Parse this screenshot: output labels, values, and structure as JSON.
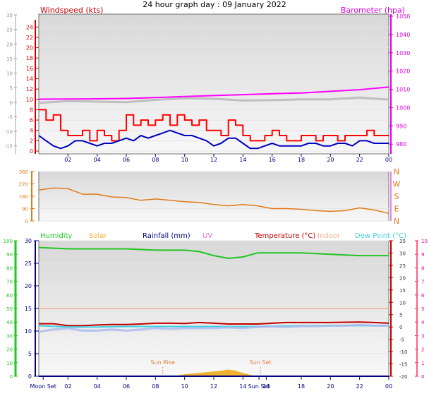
{
  "title": "24 hour graph day : 09 January 2022",
  "colors": {
    "wind_avg": "#0000c0",
    "wind_gust": "#ff0000",
    "barometer": "#ff00ff",
    "indoor_gray": "#bfbfbf",
    "direction": "#e07a1a",
    "humidity": "#22c522",
    "solar": "#f0b030",
    "rainfall": "#000080",
    "uv": "#e070e0",
    "temperature": "#c00000",
    "indoor": "#f4b090",
    "dewpoint": "#40d0e0",
    "dewpoint_light": "#a8b8f0",
    "sun_marker": "#e08040"
  },
  "chart_data": [
    {
      "type": "line",
      "panel": "wind-barometer",
      "x_labels": [
        "02",
        "04",
        "06",
        "08",
        "10",
        "12",
        "14",
        "16",
        "18",
        "20",
        "22",
        "00"
      ],
      "xlim": [
        0,
        24
      ],
      "left_axis": {
        "title": "Windspeed (kts)",
        "ticks": [
          "0",
          "2",
          "4",
          "6",
          "8",
          "10",
          "12",
          "14",
          "16",
          "18",
          "20",
          "22",
          "24"
        ],
        "ylim": [
          0,
          25
        ]
      },
      "outer_left_axis": {
        "ticks": [
          "-15",
          "-10",
          "-5",
          "0",
          "5",
          "10",
          "15",
          "20",
          "25",
          "30"
        ],
        "ylim": [
          -17,
          30
        ]
      },
      "right_axis": {
        "title": "Barometer (hpa)",
        "ticks": [
          "980",
          "990",
          "1000",
          "1010",
          "1020",
          "1030",
          "1040",
          "1050"
        ],
        "ylim": [
          977,
          1050
        ]
      },
      "series": [
        {
          "key": "barometer",
          "axis": "right",
          "x": [
            0,
            2,
            4,
            6,
            8,
            10,
            12,
            14,
            16,
            18,
            20,
            22,
            24
          ],
          "y": [
            1004.6,
            1004.7,
            1004.8,
            1005.0,
            1005.5,
            1006.1,
            1006.6,
            1007.1,
            1007.6,
            1008.0,
            1008.9,
            1009.8,
            1011.3
          ]
        },
        {
          "key": "indoor_gray",
          "axis": "outer_left",
          "x": [
            0,
            2,
            4,
            6,
            8,
            10,
            12,
            14,
            16,
            18,
            20,
            22,
            24
          ],
          "y": [
            -0.2,
            0.4,
            0.2,
            0,
            0.8,
            1.4,
            1.2,
            0.6,
            0.7,
            1.0,
            1.0,
            1.6,
            0.9
          ]
        },
        {
          "key": "wind_gust",
          "axis": "left",
          "x": [
            0,
            0.5,
            1,
            1.5,
            2,
            2.5,
            3,
            3.5,
            4,
            4.5,
            5,
            5.5,
            6,
            6.5,
            7,
            7.5,
            8,
            8.5,
            9,
            9.5,
            10,
            10.5,
            11,
            11.5,
            12,
            12.5,
            13,
            13.5,
            14,
            14.5,
            15,
            15.5,
            16,
            16.5,
            17,
            17.5,
            18,
            18.5,
            19,
            19.5,
            20,
            20.5,
            21,
            21.5,
            22,
            22.5,
            23,
            23.5,
            24
          ],
          "y": [
            8,
            6,
            7,
            4,
            3,
            3,
            4,
            2,
            4,
            3,
            2,
            4,
            7,
            5,
            6,
            5,
            6,
            7,
            5,
            7,
            6,
            5,
            6,
            4,
            4,
            3,
            6,
            5,
            3,
            2,
            2,
            3,
            4,
            3,
            2,
            2,
            3,
            3,
            2,
            3,
            3,
            2,
            3,
            3,
            3,
            4,
            3,
            3,
            3
          ]
        },
        {
          "key": "wind_avg",
          "axis": "left",
          "x": [
            0,
            0.5,
            1,
            1.5,
            2,
            2.5,
            3,
            3.5,
            4,
            4.5,
            5,
            5.5,
            6,
            6.5,
            7,
            7.5,
            8,
            8.5,
            9,
            9.5,
            10,
            10.5,
            11,
            11.5,
            12,
            12.5,
            13,
            13.5,
            14,
            14.5,
            15,
            15.5,
            16,
            16.5,
            17,
            17.5,
            18,
            18.5,
            19,
            19.5,
            20,
            20.5,
            21,
            21.5,
            22,
            22.5,
            23,
            23.5,
            24
          ],
          "y": [
            3,
            2,
            1,
            0.5,
            1,
            2,
            2,
            1.5,
            1,
            1.5,
            1.5,
            2,
            2.5,
            2,
            3,
            2.5,
            3,
            3.5,
            4,
            3.5,
            3,
            3,
            2.5,
            2,
            1,
            1.5,
            2.5,
            2.5,
            1.5,
            0.5,
            0.5,
            1,
            1.5,
            1,
            1,
            1,
            1,
            1.5,
            1.5,
            1,
            1,
            1.5,
            1.5,
            1,
            2,
            2,
            1.5,
            1.5,
            1.5
          ]
        }
      ]
    },
    {
      "type": "line",
      "panel": "wind-direction",
      "x_labels": [
        "02",
        "04",
        "06",
        "08",
        "10",
        "12",
        "14",
        "16",
        "18",
        "20",
        "22",
        "00"
      ],
      "xlim": [
        0,
        24
      ],
      "left_axis": {
        "ticks": [
          "0",
          "90",
          "180",
          "270",
          "360"
        ],
        "ylim": [
          0,
          360
        ]
      },
      "right_axis": {
        "ticks": [
          "N",
          "E",
          "S",
          "W",
          "N"
        ]
      },
      "series": [
        {
          "key": "direction",
          "x": [
            0,
            1,
            2,
            3,
            4,
            5,
            6,
            7,
            8,
            9,
            10,
            11,
            12,
            13,
            14,
            15,
            16,
            17,
            18,
            19,
            20,
            21,
            22,
            23,
            24
          ],
          "y": [
            225,
            240,
            235,
            195,
            195,
            175,
            170,
            150,
            160,
            150,
            140,
            135,
            120,
            110,
            120,
            110,
            90,
            90,
            85,
            75,
            70,
            75,
            95,
            80,
            55
          ]
        }
      ]
    },
    {
      "type": "line",
      "panel": "temperature-humidity",
      "x_labels": [
        "Moon Set",
        "02",
        "04",
        "06",
        "08",
        "10",
        "12",
        "14",
        "Sun Set",
        "16",
        "18",
        "20",
        "22",
        "00"
      ],
      "xlim": [
        0,
        24
      ],
      "legend": [
        "Humidity",
        "Solar",
        "Rainfall (mm)",
        "UV",
        "Temperature (°C)",
        "Indoor",
        "Dew Point (°C)"
      ],
      "left_axis": {
        "ticks": [
          "0",
          "10",
          "20",
          "30",
          "40",
          "50",
          "60",
          "70",
          "80",
          "90",
          "100"
        ],
        "ylim": [
          0,
          100
        ]
      },
      "inner_left_axis": {
        "ticks": [
          "0",
          "5",
          "10",
          "15",
          "20",
          "25",
          "30"
        ],
        "ylim": [
          0,
          30
        ]
      },
      "right_axis": {
        "ticks": [
          "-20",
          "-15",
          "-10",
          "-5",
          "0",
          "5",
          "10",
          "15",
          "20",
          "25",
          "30",
          "35"
        ],
        "ylim": [
          -20,
          35
        ]
      },
      "outer_right_axis": {
        "ticks": [
          "0",
          "1",
          "2",
          "3",
          "4",
          "5",
          "6",
          "7",
          "8",
          "9",
          "10"
        ],
        "ylim": [
          0,
          10
        ]
      },
      "annotations": [
        "Sun Rise",
        "Sun Set"
      ],
      "series": [
        {
          "key": "humidity",
          "axis": "left",
          "x": [
            0,
            2,
            4,
            6,
            8,
            10,
            11,
            12,
            13,
            14,
            15,
            16,
            18,
            20,
            22,
            24
          ],
          "y": [
            95,
            94,
            94,
            94,
            93,
            93,
            92,
            89,
            87,
            88,
            91,
            91,
            91,
            90,
            89,
            89
          ]
        },
        {
          "key": "indoor",
          "axis": "right",
          "x": [
            0,
            24
          ],
          "y": [
            7.5,
            7.5
          ]
        },
        {
          "key": "temperature",
          "axis": "right",
          "x": [
            0,
            1,
            2,
            3,
            4,
            5,
            6,
            7,
            8,
            9,
            10,
            11,
            12,
            13,
            14,
            15,
            16,
            17,
            18,
            19,
            20,
            21,
            22,
            23,
            24
          ],
          "y": [
            1.3,
            1.3,
            0.5,
            0.5,
            0.8,
            1,
            1,
            1.2,
            1.5,
            1.5,
            1.4,
            1.8,
            1.5,
            1.2,
            1.2,
            1.2,
            1.5,
            1.8,
            1.8,
            1.8,
            1.8,
            1.9,
            2,
            1.8,
            1.5
          ]
        },
        {
          "key": "dewpoint",
          "axis": "right",
          "x": [
            0,
            2,
            4,
            6,
            8,
            10,
            12,
            14,
            16,
            18,
            20,
            22,
            24
          ],
          "y": [
            0.5,
            0,
            0,
            0.2,
            0.2,
            0.2,
            0.2,
            0.1,
            0.3,
            0.5,
            0.5,
            0.5,
            0.5
          ]
        },
        {
          "key": "dewpoint_light",
          "axis": "right",
          "x": [
            0,
            1,
            2,
            3,
            4,
            5,
            6,
            7,
            8,
            9,
            10,
            11,
            12,
            13,
            14,
            15,
            16,
            17,
            18,
            19,
            20,
            21,
            22,
            23,
            24
          ],
          "y": [
            -2,
            -1,
            -0.5,
            -1.5,
            -1.5,
            -1,
            -1.5,
            -1,
            -0.5,
            -0.8,
            -0.5,
            -0.5,
            -0.5,
            -0.2,
            -0.5,
            0,
            0.2,
            0,
            0.3,
            0.3,
            0.5,
            0.5,
            0.8,
            0.5,
            0.5
          ]
        },
        {
          "key": "solar",
          "axis": "left",
          "x": [
            9.5,
            10,
            10.5,
            11,
            11.5,
            12,
            12.5,
            13,
            13.5,
            14,
            14.5,
            15
          ],
          "y": [
            0.5,
            1.5,
            2,
            2.5,
            3,
            3.5,
            4,
            5,
            4,
            2.5,
            1,
            0
          ]
        },
        {
          "key": "rainfall",
          "axis": "inner_left",
          "x": [
            0,
            24
          ],
          "y": [
            0,
            0
          ]
        }
      ]
    }
  ]
}
